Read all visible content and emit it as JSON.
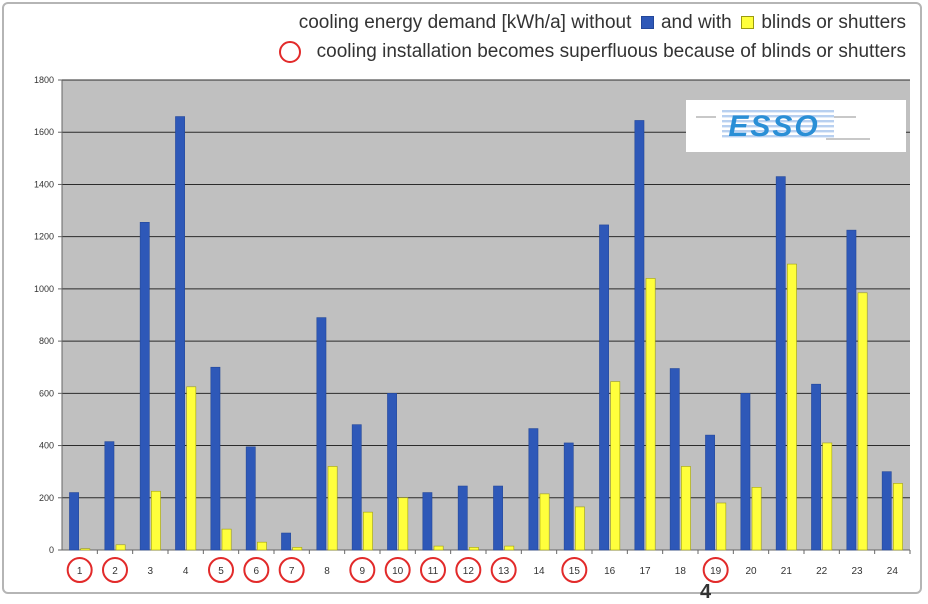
{
  "legend": {
    "line1_text": "cooling energy demand [kWh/a] without",
    "line1_with": "and with",
    "line1_end": "blinds or shutters",
    "line2_text": "cooling installation becomes superfluous because of blinds or shutters"
  },
  "logo": {
    "text": "ESSO"
  },
  "page_number": "4",
  "colors": {
    "without": "#2e58b8",
    "with": "#ffff3c",
    "circle": "#e22a2a",
    "plot_bg": "#c0c0c0",
    "grid": "#2b2b2b"
  },
  "chart_data": {
    "type": "bar",
    "categories": [
      "1",
      "2",
      "3",
      "4",
      "5",
      "6",
      "7",
      "8",
      "9",
      "10",
      "11",
      "12",
      "13",
      "14",
      "15",
      "16",
      "17",
      "18",
      "19",
      "20",
      "21",
      "22",
      "23",
      "24"
    ],
    "series": [
      {
        "name": "without",
        "values": [
          220,
          415,
          1255,
          1660,
          700,
          395,
          65,
          890,
          480,
          600,
          220,
          245,
          245,
          465,
          410,
          1245,
          1645,
          695,
          440,
          600,
          1430,
          635,
          1225,
          300
        ]
      },
      {
        "name": "with",
        "values": [
          5,
          20,
          225,
          625,
          80,
          30,
          10,
          320,
          145,
          200,
          15,
          10,
          15,
          215,
          165,
          645,
          1040,
          320,
          180,
          240,
          1095,
          410,
          985,
          255
        ]
      }
    ],
    "circled": [
      "1",
      "2",
      "5",
      "6",
      "7",
      "9",
      "10",
      "11",
      "12",
      "13",
      "15",
      "19"
    ],
    "yticks": [
      0,
      200,
      400,
      600,
      800,
      1000,
      1200,
      1400,
      1600,
      1800
    ],
    "ylim": [
      0,
      1800
    ],
    "grid": true,
    "legend_position": "top-right"
  }
}
